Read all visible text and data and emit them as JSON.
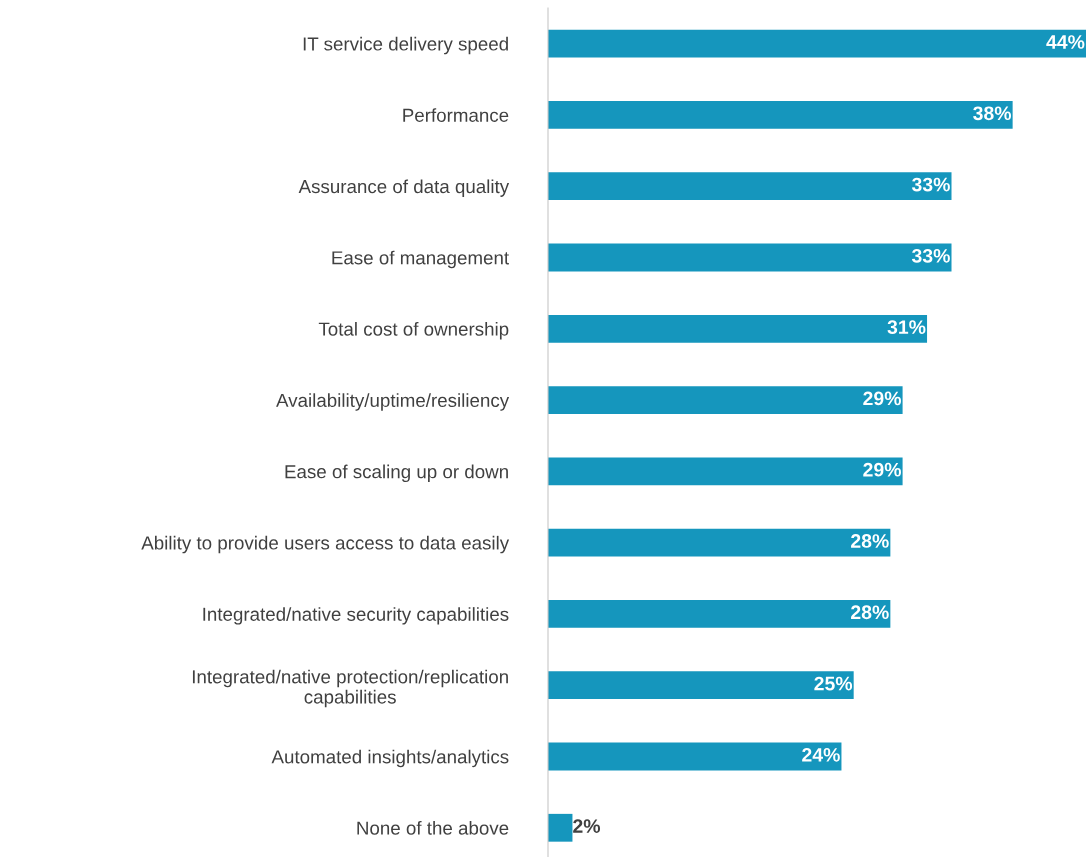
{
  "chart_data": {
    "type": "bar",
    "orientation": "horizontal",
    "categories": [
      "IT service delivery speed",
      "Performance",
      "Assurance of data quality",
      "Ease of management",
      "Total cost of ownership",
      "Availability/uptime/resiliency",
      "Ease of scaling up or down",
      "Ability to provide users access to data easily",
      "Integrated/native security capabilities",
      "Integrated/native protection/replication\ncapabilities",
      "Automated insights/analytics",
      "None of the above"
    ],
    "values": [
      44,
      38,
      33,
      33,
      31,
      29,
      29,
      28,
      28,
      25,
      24,
      2
    ],
    "value_labels": [
      "44%",
      "38%",
      "33%",
      "33%",
      "31%",
      "29%",
      "29%",
      "28%",
      "28%",
      "25%",
      "24%",
      "2%"
    ],
    "color": "#1596bd",
    "grid": false,
    "legend": false
  }
}
